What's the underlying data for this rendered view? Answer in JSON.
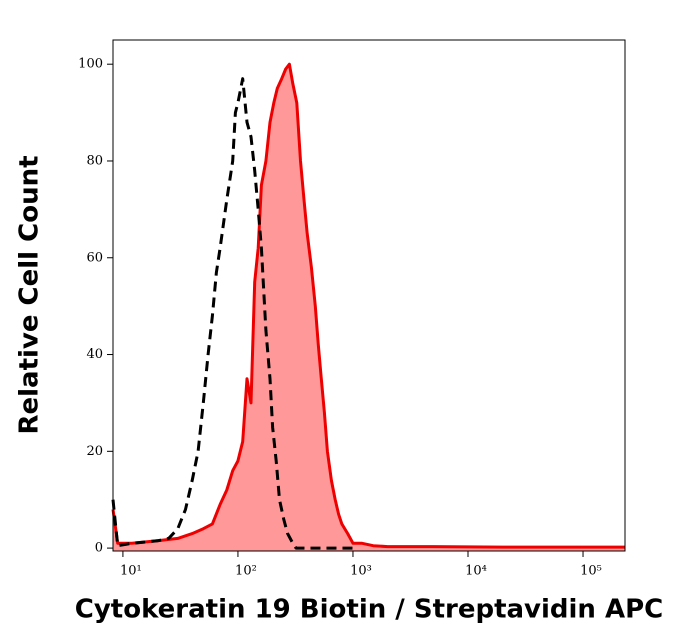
{
  "chart_data": {
    "type": "histogram-overlay",
    "xlabel": "Cytokeratin 19 Biotin / Streptavidin APC",
    "ylabel": "Relative Cell Count",
    "xscale": "log",
    "xlim": [
      8.2,
      231700
    ],
    "ylim": [
      -0.6,
      105
    ],
    "xticks": [
      {
        "value": 10,
        "label": "10¹"
      },
      {
        "value": 100,
        "label": "10²"
      },
      {
        "value": 1000,
        "label": "10³"
      },
      {
        "value": 10000,
        "label": "10⁴"
      },
      {
        "value": 100000,
        "label": "10⁵"
      }
    ],
    "yticks": [
      0,
      20,
      40,
      60,
      80,
      100
    ],
    "series": [
      {
        "color": "#ee0000",
        "fill": "#ff9999",
        "dashed": false,
        "x": [
          8.2,
          9,
          12,
          20,
          30,
          40,
          50,
          60,
          70,
          80,
          90,
          100,
          110,
          120,
          130,
          140,
          150,
          160,
          175,
          190,
          205,
          220,
          240,
          260,
          280,
          300,
          325,
          350,
          375,
          400,
          435,
          470,
          500,
          530,
          565,
          600,
          650,
          700,
          750,
          800,
          900,
          1000,
          1200,
          1500,
          2000,
          5000,
          20000,
          100000,
          231700
        ],
        "values": [
          8,
          1,
          1,
          1.5,
          2,
          3,
          4,
          5,
          9,
          12,
          16,
          18,
          22,
          35,
          30,
          55,
          62,
          75,
          80,
          88,
          92,
          95,
          97,
          99,
          100,
          96,
          92,
          80,
          72,
          65,
          58,
          50,
          42,
          35,
          28,
          20,
          14,
          10,
          7,
          5,
          3,
          1,
          1,
          0.5,
          0.3,
          0.3,
          0.2,
          0.2,
          0.2
        ]
      },
      {
        "color": "#000000",
        "dashed": true,
        "x": [
          8.2,
          9,
          12,
          20,
          25,
          30,
          35,
          40,
          45,
          50,
          55,
          60,
          65,
          70,
          80,
          90,
          95,
          100,
          110,
          120,
          130,
          140,
          150,
          160,
          175,
          190,
          200,
          215,
          230,
          250,
          270,
          300,
          320,
          400,
          1000
        ],
        "values": [
          10,
          0.5,
          1,
          1.5,
          2,
          4,
          8,
          14,
          20,
          30,
          40,
          48,
          57,
          62,
          72,
          80,
          90,
          92,
          97,
          88,
          85,
          78,
          70,
          62,
          45,
          35,
          25,
          18,
          10,
          6,
          3,
          1,
          0,
          0,
          0
        ]
      }
    ]
  }
}
